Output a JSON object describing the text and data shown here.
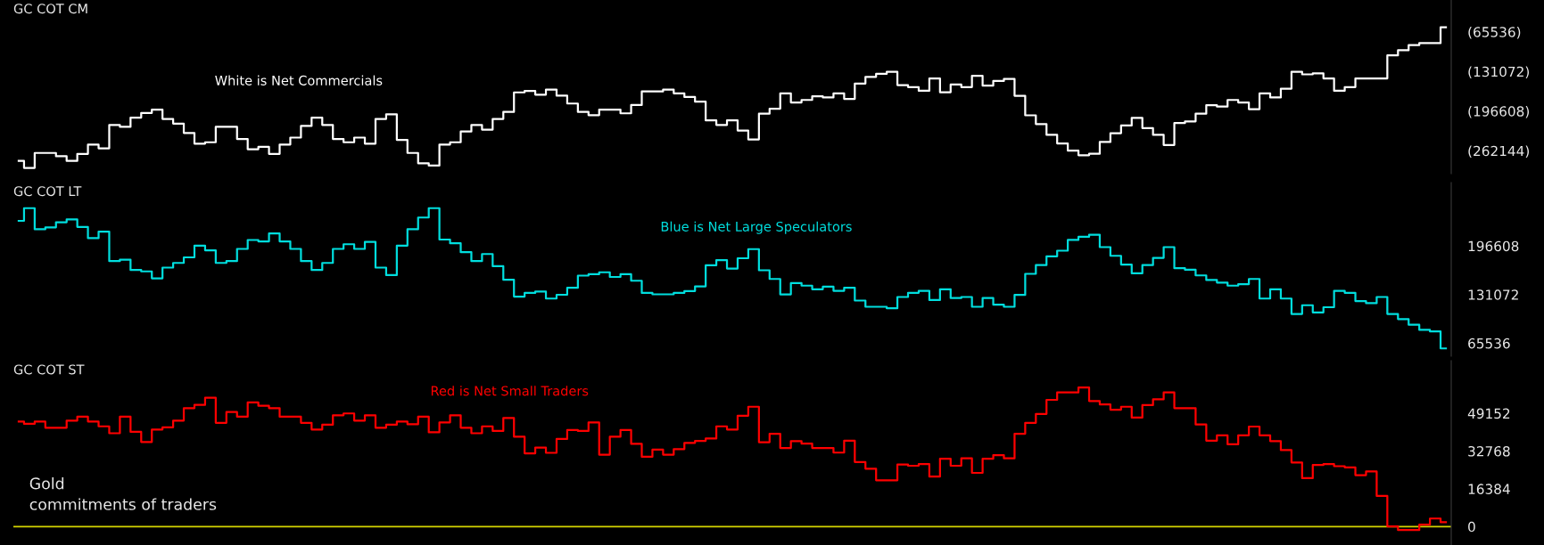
{
  "chart_data": [
    {
      "type": "step",
      "title": "GC COT CM",
      "categories": [
        null,
        null,
        null,
        null,
        null,
        null,
        null,
        null,
        null,
        null,
        null,
        null,
        null,
        null,
        null,
        null,
        null,
        null,
        null,
        null,
        null,
        null,
        null,
        null,
        null,
        null,
        null,
        null,
        null,
        null,
        null,
        null,
        null,
        null,
        null,
        null,
        null,
        null,
        null,
        null,
        null,
        null,
        null,
        null,
        null,
        null,
        null,
        null,
        null,
        null,
        null,
        null,
        null,
        null,
        null,
        null,
        null,
        null,
        null,
        null,
        null,
        null,
        null,
        null,
        null,
        null,
        null,
        null,
        null,
        null,
        null,
        null,
        null,
        null,
        null,
        null,
        null,
        null,
        null,
        null,
        null,
        null,
        null,
        null,
        null,
        null,
        null,
        null,
        null,
        null,
        null,
        null,
        null,
        null,
        null,
        null,
        null,
        null,
        null,
        null,
        null,
        null,
        null,
        null,
        null,
        null,
        null,
        null,
        null,
        null,
        null,
        null,
        null,
        null,
        null,
        null,
        null,
        null,
        null,
        null,
        null,
        null,
        null,
        null,
        null,
        null,
        null,
        null,
        null,
        null,
        null,
        null,
        null,
        null,
        null
      ],
      "series": [
        {
          "name": "White is Net Commercials",
          "color": "#ffffff",
          "values": [
            -278900,
            -290500,
            -265800,
            -265800,
            -271200,
            -278900,
            -267400,
            -251900,
            -258100,
            -219600,
            -222700,
            -207300,
            -199600,
            -194200,
            -209600,
            -217300,
            -232700,
            -250400,
            -248100,
            -222700,
            -222700,
            -242700,
            -259600,
            -255800,
            -267400,
            -251900,
            -240400,
            -221100,
            -207300,
            -219600,
            -242700,
            -248100,
            -240400,
            -250400,
            -209600,
            -201900,
            -244200,
            -265800,
            -282800,
            -286600,
            -251900,
            -248100,
            -230400,
            -219600,
            -227300,
            -209600,
            -198000,
            -165700,
            -163300,
            -169500,
            -161000,
            -171100,
            -184100,
            -198000,
            -203400,
            -194200,
            -194200,
            -200300,
            -186500,
            -164100,
            -164100,
            -161000,
            -167200,
            -173400,
            -181100,
            -211900,
            -219600,
            -211900,
            -228800,
            -243400,
            -201000,
            -192600,
            -167200,
            -182400,
            -178200,
            -172300,
            -174000,
            -167200,
            -176500,
            -151100,
            -140100,
            -135000,
            -131600,
            -153600,
            -157000,
            -163000,
            -142600,
            -165500,
            -152800,
            -157000,
            -138400,
            -154500,
            -146900,
            -143500,
            -171400,
            -203600,
            -218000,
            -235800,
            -250100,
            -262000,
            -269600,
            -267100,
            -247600,
            -233200,
            -220500,
            -207800,
            -224700,
            -235800,
            -252700,
            -216300,
            -213700,
            -201000,
            -186700,
            -189200,
            -178200,
            -182400,
            -193400,
            -167200,
            -174000,
            -159600,
            -131600,
            -135900,
            -134200,
            -142600,
            -163000,
            -157000,
            -142600,
            -142600,
            -142600,
            -104500,
            -96100,
            -87600,
            -84200,
            -84200,
            -58000
          ]
        }
      ],
      "ylim": [
        -300000,
        -13000
      ],
      "yticks": [
        {
          "value": -65536,
          "label": "(65536)"
        },
        {
          "value": -131072,
          "label": "(131072)"
        },
        {
          "value": -196608,
          "label": "(196608)"
        },
        {
          "value": -262144,
          "label": "(262144)"
        }
      ]
    },
    {
      "type": "step",
      "title": "GC COT LT",
      "categories": [
        null,
        null,
        null,
        null,
        null,
        null,
        null,
        null,
        null,
        null,
        null,
        null,
        null,
        null,
        null,
        null,
        null,
        null,
        null,
        null,
        null,
        null,
        null,
        null,
        null,
        null,
        null,
        null,
        null,
        null,
        null,
        null,
        null,
        null,
        null,
        null,
        null,
        null,
        null,
        null,
        null,
        null,
        null,
        null,
        null,
        null,
        null,
        null,
        null,
        null,
        null,
        null,
        null,
        null,
        null,
        null,
        null,
        null,
        null,
        null,
        null,
        null,
        null,
        null,
        null,
        null,
        null,
        null,
        null,
        null,
        null,
        null,
        null,
        null,
        null,
        null,
        null,
        null,
        null,
        null,
        null,
        null,
        null,
        null,
        null,
        null,
        null,
        null,
        null,
        null,
        null,
        null,
        null,
        null,
        null,
        null,
        null,
        null,
        null,
        null,
        null,
        null,
        null,
        null,
        null,
        null,
        null,
        null,
        null,
        null,
        null,
        null,
        null,
        null,
        null,
        null,
        null,
        null,
        null,
        null,
        null,
        null,
        null,
        null,
        null,
        null,
        null,
        null,
        null,
        null,
        null,
        null,
        null,
        null,
        null
      ],
      "series": [
        {
          "name": "Blue is Net Large Speculators",
          "color": "#00dede",
          "values": [
            230400,
            247500,
            219100,
            221600,
            228500,
            232300,
            222200,
            207100,
            215900,
            176200,
            178100,
            164200,
            162300,
            152900,
            167400,
            173700,
            181200,
            197000,
            190700,
            173700,
            176200,
            192600,
            204600,
            202700,
            213400,
            202700,
            192600,
            176200,
            164200,
            173700,
            192600,
            198900,
            192600,
            202100,
            167400,
            157300,
            197000,
            219100,
            234900,
            247500,
            205200,
            200200,
            188200,
            176200,
            185700,
            169300,
            151000,
            128300,
            133300,
            135200,
            125700,
            130800,
            140200,
            156600,
            158500,
            161100,
            154800,
            158500,
            149700,
            133300,
            131400,
            131400,
            133300,
            135800,
            142100,
            170500,
            177500,
            166100,
            180000,
            192300,
            163800,
            152100,
            131300,
            146500,
            143100,
            138200,
            141700,
            136100,
            140300,
            123000,
            114600,
            114600,
            112600,
            127800,
            133400,
            136100,
            123700,
            138200,
            126400,
            127800,
            114600,
            126400,
            117400,
            114600,
            130600,
            159000,
            170800,
            182600,
            190200,
            204700,
            208900,
            211700,
            195000,
            183300,
            171500,
            159700,
            170800,
            180500,
            195000,
            166600,
            164500,
            156900,
            150700,
            147200,
            143100,
            145100,
            152100,
            125700,
            138200,
            125700,
            104900,
            116700,
            107000,
            114000,
            136100,
            133400,
            122300,
            119500,
            127800,
            104900,
            98000,
            90400,
            83500,
            81400,
            58500
          ]
        }
      ],
      "ylim": [
        48000,
        282000
      ],
      "yticks": [
        65536,
        131072,
        196608
      ]
    },
    {
      "type": "step",
      "title": "GC COT ST",
      "categories": [
        null,
        null,
        null,
        null,
        null,
        null,
        null,
        null,
        null,
        null,
        null,
        null,
        null,
        null,
        null,
        null,
        null,
        null,
        null,
        null,
        null,
        null,
        null,
        null,
        null,
        null,
        null,
        null,
        null,
        null,
        null,
        null,
        null,
        null,
        null,
        null,
        null,
        null,
        null,
        null,
        null,
        null,
        null,
        null,
        null,
        null,
        null,
        null,
        null,
        null,
        null,
        null,
        null,
        null,
        null,
        null,
        null,
        null,
        null,
        null,
        null,
        null,
        null,
        null,
        null,
        null,
        null,
        null,
        null,
        null,
        null,
        null,
        null,
        null,
        null,
        null,
        null,
        null,
        null,
        null,
        null,
        null,
        null,
        null,
        null,
        null,
        null,
        null,
        null,
        null,
        null,
        null,
        null,
        null,
        null,
        null,
        null,
        null,
        null,
        null,
        null,
        null,
        null,
        null,
        null,
        null,
        null,
        null,
        null,
        null,
        null,
        null,
        null,
        null,
        null,
        null,
        null,
        null,
        null,
        null,
        null,
        null,
        null,
        null,
        null,
        null,
        null,
        null,
        null,
        null,
        null,
        null,
        null,
        null,
        null
      ],
      "series": [
        {
          "name": "Red is Net Small Traders",
          "color": "#ff0000",
          "values": [
            45600,
            44600,
            45600,
            42900,
            42900,
            46000,
            47700,
            45600,
            43500,
            40500,
            47700,
            41100,
            36700,
            42100,
            43100,
            46000,
            51400,
            52800,
            55900,
            45000,
            49700,
            47700,
            53900,
            52400,
            51400,
            47700,
            47700,
            45000,
            42100,
            44200,
            48300,
            49100,
            46000,
            48300,
            42900,
            44200,
            45600,
            44400,
            47700,
            40900,
            45200,
            48300,
            42900,
            40500,
            43500,
            41500,
            47100,
            39000,
            31800,
            34300,
            32000,
            38000,
            41900,
            41500,
            45200,
            31200,
            39000,
            41900,
            35900,
            30300,
            33400,
            31200,
            33600,
            36300,
            37200,
            38200,
            43500,
            42100,
            48100,
            52000,
            36600,
            40300,
            34100,
            37100,
            36000,
            34100,
            34100,
            32100,
            37300,
            28000,
            25100,
            20100,
            20100,
            26900,
            26400,
            27100,
            21700,
            29400,
            26400,
            29600,
            23300,
            29400,
            31000,
            29600,
            40300,
            45000,
            48900,
            55000,
            58200,
            58200,
            60400,
            54500,
            53000,
            50700,
            52000,
            47300,
            52700,
            55200,
            58200,
            51400,
            51400,
            44300,
            37300,
            39600,
            35700,
            39600,
            43400,
            39600,
            37100,
            33200,
            27800,
            21000,
            26700,
            27100,
            26200,
            25700,
            22300,
            23900,
            13300,
            100,
            -1500,
            -1500,
            800,
            3500,
            1900
          ]
        }
      ],
      "ylim": [
        -8000,
        72000
      ],
      "yticks": [
        0,
        16384,
        32768,
        49152
      ],
      "ref_lines": [
        {
          "axis": "y",
          "value": 0,
          "color": "#d4d400"
        }
      ],
      "annotations": [
        "Gold\ncommitments of traders"
      ]
    }
  ]
}
